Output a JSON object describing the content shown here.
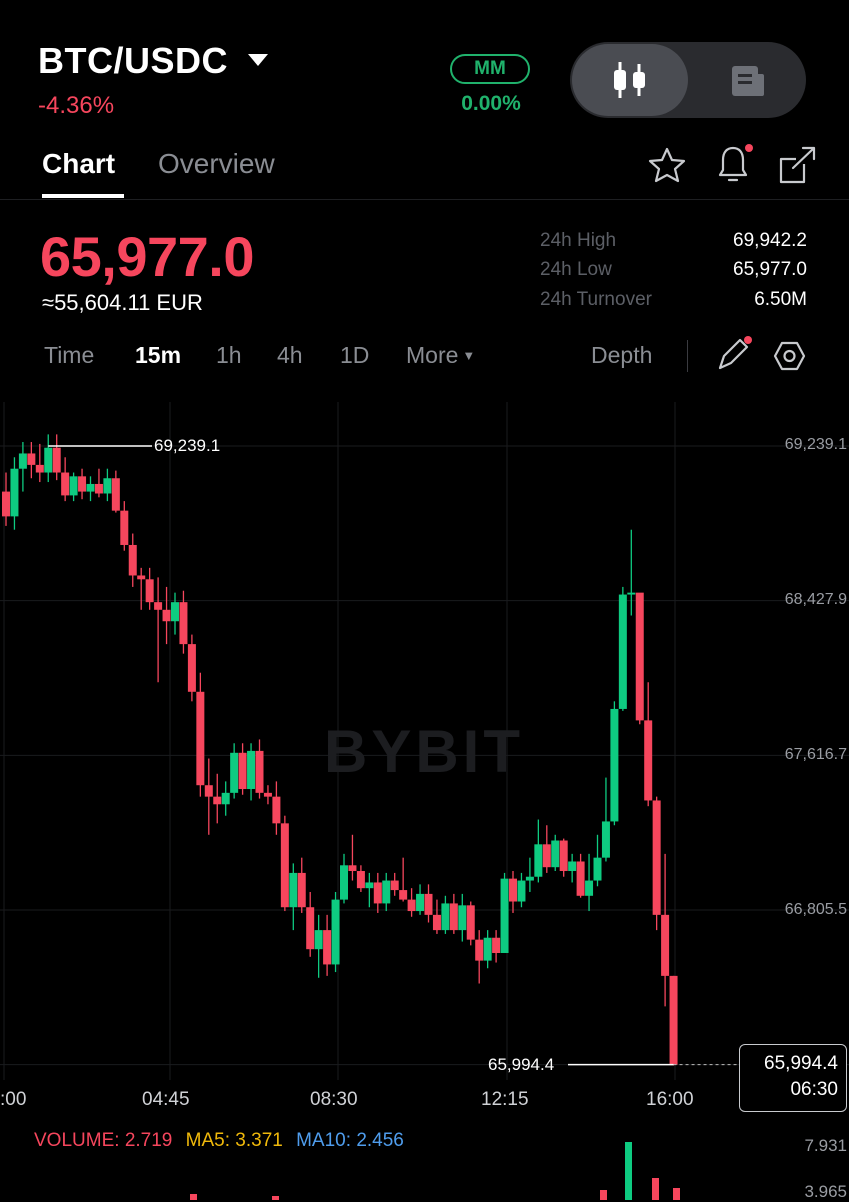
{
  "header": {
    "pair": "BTC/USDC",
    "change_pct": "-4.36%",
    "mm_label": "MM",
    "mm_value": "0.00%"
  },
  "tabs": [
    {
      "label": "Chart"
    },
    {
      "label": "Overview"
    }
  ],
  "ticker": {
    "last_price": "65,977.0",
    "fiat_equiv": "≈55,604.11 EUR",
    "stats": [
      {
        "label": "24h High",
        "value": "69,942.2"
      },
      {
        "label": "24h Low",
        "value": "65,977.0"
      },
      {
        "label": "24h Turnover",
        "value": "6.50M"
      }
    ]
  },
  "timeframes": {
    "items": [
      "Time",
      "15m",
      "1h",
      "4h",
      "1D"
    ],
    "selected": "15m",
    "more_label": "More",
    "depth_label": "Depth"
  },
  "colors": {
    "up": "#0ecb81",
    "down": "#f6465d",
    "ma5": "#f0b90b",
    "ma10": "#4f9ded"
  },
  "chart_data": {
    "type": "candlestick",
    "watermark": "BYBIT",
    "price_axis_ticks": [
      "69,239.1",
      "68,427.9",
      "67,616.7",
      "66,805.5"
    ],
    "price_axis_values": [
      69239.1,
      68427.9,
      67616.7,
      66805.5
    ],
    "time_axis_ticks": [
      ":00",
      "04:45",
      "08:30",
      "12:15",
      "16:00"
    ],
    "high_label": "69,239.1",
    "low_label": "65,994.4",
    "current_price_label": "65,994.4",
    "countdown": "06:30",
    "ohlc": [
      [
        69000,
        69100,
        68820,
        68870
      ],
      [
        68870,
        69180,
        68800,
        69120
      ],
      [
        69120,
        69260,
        69000,
        69200
      ],
      [
        69200,
        69260,
        69070,
        69140
      ],
      [
        69140,
        69250,
        69050,
        69100
      ],
      [
        69100,
        69300,
        69050,
        69230
      ],
      [
        69230,
        69300,
        69060,
        69100
      ],
      [
        69100,
        69180,
        68950,
        68980
      ],
      [
        68980,
        69100,
        68950,
        69080
      ],
      [
        69080,
        69120,
        68960,
        69000
      ],
      [
        69000,
        69080,
        68950,
        69040
      ],
      [
        69040,
        69120,
        68970,
        68990
      ],
      [
        68990,
        69120,
        68950,
        69070
      ],
      [
        69070,
        69110,
        68890,
        68900
      ],
      [
        68900,
        68950,
        68690,
        68720
      ],
      [
        68720,
        68780,
        68500,
        68560
      ],
      [
        68560,
        68600,
        68380,
        68540
      ],
      [
        68540,
        68600,
        68380,
        68420
      ],
      [
        68420,
        68550,
        68000,
        68380
      ],
      [
        68380,
        68500,
        68200,
        68320
      ],
      [
        68320,
        68470,
        68250,
        68420
      ],
      [
        68420,
        68480,
        68150,
        68200
      ],
      [
        68200,
        68250,
        67900,
        67950
      ],
      [
        67950,
        68050,
        67400,
        67460
      ],
      [
        67460,
        67600,
        67200,
        67400
      ],
      [
        67400,
        67520,
        67260,
        67360
      ],
      [
        67360,
        67480,
        67300,
        67420
      ],
      [
        67420,
        67680,
        67390,
        67630
      ],
      [
        67630,
        67680,
        67410,
        67440
      ],
      [
        67440,
        67680,
        67380,
        67640
      ],
      [
        67640,
        67700,
        67390,
        67420
      ],
      [
        67420,
        67460,
        67360,
        67400
      ],
      [
        67400,
        67480,
        67200,
        67260
      ],
      [
        67260,
        67300,
        66800,
        66820
      ],
      [
        66820,
        67050,
        66700,
        67000
      ],
      [
        67000,
        67080,
        66790,
        66820
      ],
      [
        66820,
        66900,
        66560,
        66600
      ],
      [
        66600,
        66780,
        66450,
        66700
      ],
      [
        66700,
        66780,
        66460,
        66520
      ],
      [
        66520,
        66900,
        66480,
        66860
      ],
      [
        66860,
        67100,
        66840,
        67040
      ],
      [
        67040,
        67200,
        66960,
        67010
      ],
      [
        67010,
        67040,
        66900,
        66920
      ],
      [
        66920,
        67000,
        66820,
        66950
      ],
      [
        66950,
        67000,
        66790,
        66840
      ],
      [
        66840,
        67000,
        66800,
        66960
      ],
      [
        66960,
        67000,
        66880,
        66910
      ],
      [
        66910,
        67080,
        66850,
        66860
      ],
      [
        66860,
        66920,
        66770,
        66800
      ],
      [
        66800,
        66940,
        66780,
        66890
      ],
      [
        66890,
        66940,
        66740,
        66780
      ],
      [
        66780,
        66860,
        66680,
        66700
      ],
      [
        66700,
        66880,
        66680,
        66840
      ],
      [
        66840,
        66890,
        66680,
        66700
      ],
      [
        66700,
        66890,
        66640,
        66830
      ],
      [
        66830,
        66850,
        66620,
        66650
      ],
      [
        66650,
        66700,
        66420,
        66540
      ],
      [
        66540,
        66700,
        66500,
        66660
      ],
      [
        66660,
        66700,
        66530,
        66580
      ],
      [
        66580,
        67000,
        66580,
        66970
      ],
      [
        66970,
        67010,
        66790,
        66850
      ],
      [
        66850,
        67000,
        66820,
        66960
      ],
      [
        66960,
        67080,
        66900,
        66980
      ],
      [
        66980,
        67280,
        66950,
        67150
      ],
      [
        67150,
        67250,
        67000,
        67030
      ],
      [
        67030,
        67200,
        67010,
        67170
      ],
      [
        67170,
        67180,
        66980,
        67010
      ],
      [
        67010,
        67100,
        66950,
        67060
      ],
      [
        67060,
        67100,
        66870,
        66880
      ],
      [
        66880,
        67100,
        66800,
        66960
      ],
      [
        66960,
        67200,
        66930,
        67080
      ],
      [
        67080,
        67500,
        67060,
        67270
      ],
      [
        67270,
        67900,
        67250,
        67860
      ],
      [
        67860,
        68500,
        67850,
        68460
      ],
      [
        68460,
        68800,
        68350,
        68470
      ],
      [
        68470,
        68450,
        67780,
        67800
      ],
      [
        67800,
        68000,
        67350,
        67380
      ],
      [
        67380,
        67400,
        66700,
        66780
      ],
      [
        66780,
        67100,
        66300,
        66460
      ],
      [
        66460,
        66460,
        65990,
        65994
      ]
    ],
    "volume": {
      "label": "VOLUME",
      "value": "2.719",
      "ma5_label": "MA5",
      "ma5_value": "3.371",
      "ma10_label": "MA10",
      "ma10_value": "2.456",
      "axis_top": "7.931",
      "axis_mid": "3.965"
    }
  }
}
